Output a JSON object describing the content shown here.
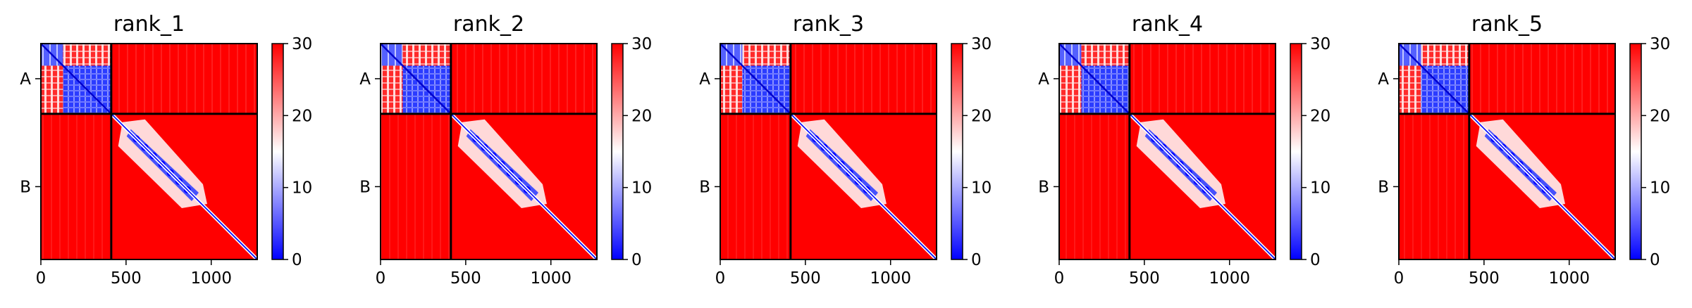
{
  "chart_data": [
    {
      "type": "heatmap",
      "title": "rank_1",
      "xlabel": "",
      "ylabel": "",
      "x_ticks": [
        0,
        500,
        1000
      ],
      "xlim": [
        0,
        1270
      ],
      "y_tick_labels": [
        "A",
        "B"
      ],
      "chain_boundaries": [
        0,
        413,
        1270
      ],
      "colorbar": {
        "ticks": [
          0,
          10,
          20,
          30
        ],
        "range": [
          0,
          30
        ],
        "colormap": "bwr"
      },
      "blocks": {
        "A_A": "mostly blue (low values), red-striped first sub-block",
        "A_B": "red (~30)",
        "B_A": "red (~30)",
        "B_B": "red with blue diagonal band, low-value cluster approx 500-900"
      },
      "grid": false,
      "legend": "none"
    },
    {
      "type": "heatmap",
      "title": "rank_2",
      "xlabel": "",
      "ylabel": "",
      "x_ticks": [
        0,
        500,
        1000
      ],
      "xlim": [
        0,
        1270
      ],
      "y_tick_labels": [
        "A",
        "B"
      ],
      "chain_boundaries": [
        0,
        413,
        1270
      ],
      "colorbar": {
        "ticks": [
          0,
          10,
          20,
          30
        ],
        "range": [
          0,
          30
        ],
        "colormap": "bwr"
      },
      "grid": false,
      "legend": "none"
    },
    {
      "type": "heatmap",
      "title": "rank_3",
      "xlabel": "",
      "ylabel": "",
      "x_ticks": [
        0,
        500,
        1000
      ],
      "xlim": [
        0,
        1270
      ],
      "y_tick_labels": [
        "A",
        "B"
      ],
      "chain_boundaries": [
        0,
        413,
        1270
      ],
      "colorbar": {
        "ticks": [
          0,
          10,
          20,
          30
        ],
        "range": [
          0,
          30
        ],
        "colormap": "bwr"
      },
      "grid": false,
      "legend": "none"
    },
    {
      "type": "heatmap",
      "title": "rank_4",
      "xlabel": "",
      "ylabel": "",
      "x_ticks": [
        0,
        500,
        1000
      ],
      "xlim": [
        0,
        1270
      ],
      "y_tick_labels": [
        "A",
        "B"
      ],
      "chain_boundaries": [
        0,
        413,
        1270
      ],
      "colorbar": {
        "ticks": [
          0,
          10,
          20,
          30
        ],
        "range": [
          0,
          30
        ],
        "colormap": "bwr"
      },
      "grid": false,
      "legend": "none"
    },
    {
      "type": "heatmap",
      "title": "rank_5",
      "xlabel": "",
      "ylabel": "",
      "x_ticks": [
        0,
        500,
        1000
      ],
      "xlim": [
        0,
        1270
      ],
      "y_tick_labels": [
        "A",
        "B"
      ],
      "chain_boundaries": [
        0,
        413,
        1270
      ],
      "colorbar": {
        "ticks": [
          0,
          10,
          20,
          30
        ],
        "range": [
          0,
          30
        ],
        "colormap": "bwr"
      },
      "grid": false,
      "legend": "none"
    }
  ],
  "colors": {
    "high": "#ff0000",
    "mid": "#ffffff",
    "low": "#0000ff",
    "boundary_line": "#000000"
  }
}
